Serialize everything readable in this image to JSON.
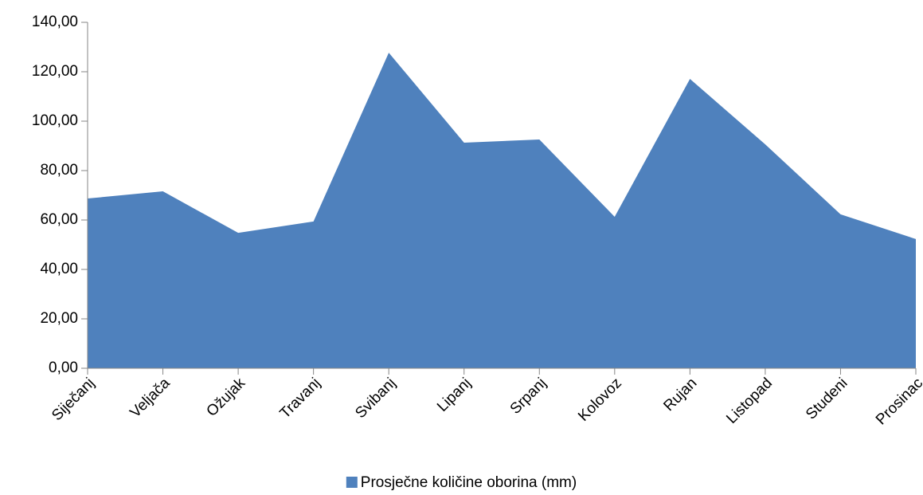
{
  "chart_data": {
    "type": "area",
    "categories": [
      "Siječanj",
      "Veljača",
      "Ožujak",
      "Travanj",
      "Svibanj",
      "Lipanj",
      "Srpanj",
      "Kolovoz",
      "Rujan",
      "Listopad",
      "Studeni",
      "Prosinac"
    ],
    "series": [
      {
        "name": "Prosječne količine oborina (mm)",
        "color": "#4f81bd",
        "values": [
          68.7,
          71.6,
          54.8,
          59.4,
          127.7,
          91.3,
          92.6,
          61.3,
          117.1,
          90.6,
          62.3,
          52.3
        ]
      }
    ],
    "ylim": [
      0,
      140
    ],
    "yticks": [
      {
        "value": 0,
        "label": "0,00"
      },
      {
        "value": 20,
        "label": "20,00"
      },
      {
        "value": 40,
        "label": "40,00"
      },
      {
        "value": 60,
        "label": "60,00"
      },
      {
        "value": 80,
        "label": "80,00"
      },
      {
        "value": 100,
        "label": "100,00"
      },
      {
        "value": 120,
        "label": "120,00"
      },
      {
        "value": 140,
        "label": "140,00"
      }
    ],
    "grid": false,
    "legend": "bottom"
  }
}
